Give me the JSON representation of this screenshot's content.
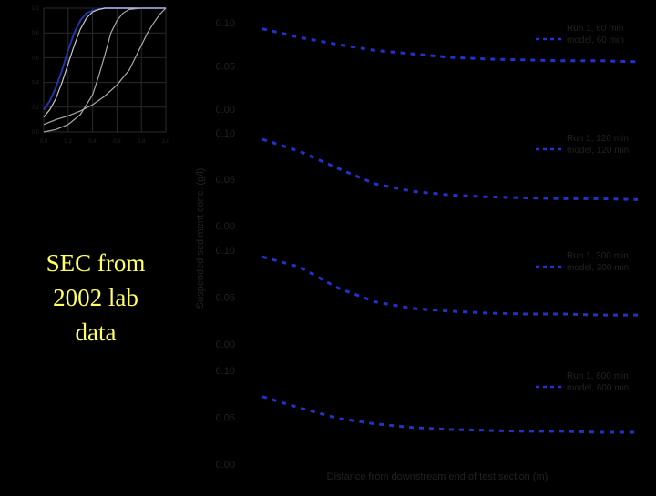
{
  "slide": {
    "caption_lines": [
      "SEC from",
      "2002 lab",
      "data"
    ],
    "background": "#000000",
    "caption_color": "#ffff66"
  },
  "chart_data": [
    {
      "type": "line",
      "title": "",
      "x_ticks": [
        "0.0",
        "0.2",
        "0.4",
        "0.6",
        "0.8",
        "1.0"
      ],
      "y_ticks": [
        "0.0",
        "0.2",
        "0.4",
        "0.6",
        "0.8",
        "1.0"
      ],
      "xlim": [
        0,
        1
      ],
      "ylim": [
        0,
        1
      ],
      "grid": true,
      "series": [
        {
          "color": "#2233aa",
          "x": [
            0.0,
            0.05,
            0.1,
            0.15,
            0.2,
            0.25,
            0.3,
            0.35,
            0.4,
            0.45,
            0.5,
            0.6,
            0.7,
            0.8,
            0.9,
            1.0
          ],
          "y": [
            0.18,
            0.25,
            0.36,
            0.5,
            0.66,
            0.8,
            0.9,
            0.96,
            0.98,
            0.99,
            1.0,
            1.0,
            1.0,
            1.0,
            1.0,
            1.0
          ]
        },
        {
          "color": "#cccccc",
          "x": [
            0.0,
            0.05,
            0.1,
            0.15,
            0.2,
            0.25,
            0.3,
            0.35,
            0.4,
            0.45,
            0.5,
            0.6,
            0.7,
            0.8,
            0.9,
            1.0
          ],
          "y": [
            0.12,
            0.18,
            0.27,
            0.4,
            0.55,
            0.7,
            0.83,
            0.92,
            0.97,
            0.99,
            1.0,
            1.0,
            1.0,
            1.0,
            1.0,
            1.0
          ]
        },
        {
          "color": "#aaaaaa",
          "x": [
            0.0,
            0.1,
            0.2,
            0.3,
            0.4,
            0.45,
            0.5,
            0.55,
            0.6,
            0.65,
            0.7,
            0.8,
            0.9,
            1.0
          ],
          "y": [
            0.0,
            0.02,
            0.06,
            0.14,
            0.3,
            0.45,
            0.62,
            0.8,
            0.9,
            0.96,
            0.99,
            1.0,
            1.0,
            1.0
          ]
        },
        {
          "color": "#aaaaaa",
          "x": [
            0.0,
            0.1,
            0.2,
            0.3,
            0.4,
            0.5,
            0.6,
            0.7,
            0.75,
            0.8,
            0.85,
            0.9,
            0.95,
            1.0
          ],
          "y": [
            0.06,
            0.1,
            0.13,
            0.17,
            0.22,
            0.29,
            0.38,
            0.5,
            0.6,
            0.7,
            0.8,
            0.88,
            0.95,
            1.0
          ]
        }
      ]
    },
    {
      "type": "line",
      "ylabel": "Suspended sediment conc. (g/l)",
      "xlabel": "Distance from downstream end of test section (m)",
      "panels": [
        {
          "y_ticks": [
            "0.10",
            "0.05",
            "0.00"
          ],
          "ylim": [
            0,
            0.1
          ],
          "legend": [
            "Run 1, 60 min",
            "model, 60 min"
          ],
          "series": [
            {
              "name": "model, 60 min",
              "color": "#2233cc",
              "dashed": true,
              "x": [
                0,
                0.1,
                0.2,
                0.3,
                0.4,
                0.5,
                0.6,
                0.7,
                0.8,
                0.9,
                1.0
              ],
              "y": [
                0.093,
                0.083,
                0.075,
                0.068,
                0.064,
                0.06,
                0.058,
                0.057,
                0.056,
                0.056,
                0.055
              ]
            }
          ]
        },
        {
          "y_ticks": [
            "0.10",
            "0.05",
            "0.00"
          ],
          "ylim": [
            0,
            0.1
          ],
          "legend": [
            "Run 1, 120 min",
            "model, 120 min"
          ],
          "series": [
            {
              "name": "model, 120 min",
              "color": "#2233cc",
              "dashed": true,
              "x": [
                0,
                0.1,
                0.2,
                0.3,
                0.4,
                0.5,
                0.6,
                0.7,
                0.8,
                0.9,
                1.0
              ],
              "y": [
                0.093,
                0.08,
                0.062,
                0.045,
                0.037,
                0.033,
                0.031,
                0.03,
                0.029,
                0.029,
                0.028
              ]
            }
          ]
        },
        {
          "y_ticks": [
            "0.10",
            "0.05",
            "0.00"
          ],
          "ylim": [
            0,
            0.1
          ],
          "legend": [
            "Run 1, 300 min",
            "model, 300 min"
          ],
          "series": [
            {
              "name": "model, 300 min",
              "color": "#2233cc",
              "dashed": true,
              "x": [
                0,
                0.1,
                0.2,
                0.3,
                0.4,
                0.5,
                0.6,
                0.7,
                0.8,
                0.9,
                1.0
              ],
              "y": [
                0.093,
                0.082,
                0.06,
                0.045,
                0.038,
                0.035,
                0.033,
                0.032,
                0.032,
                0.031,
                0.031
              ]
            }
          ]
        },
        {
          "y_ticks": [
            "0.10",
            "0.05",
            "0.00"
          ],
          "ylim": [
            0,
            0.1
          ],
          "legend": [
            "Run 1, 600 min",
            "model, 600 min"
          ],
          "series": [
            {
              "name": "model, 600 min",
              "color": "#2233cc",
              "dashed": true,
              "x": [
                0,
                0.1,
                0.2,
                0.3,
                0.4,
                0.5,
                0.6,
                0.7,
                0.8,
                0.9,
                1.0
              ],
              "y": [
                0.072,
                0.06,
                0.049,
                0.043,
                0.039,
                0.037,
                0.036,
                0.035,
                0.035,
                0.034,
                0.034
              ]
            }
          ]
        }
      ]
    }
  ]
}
